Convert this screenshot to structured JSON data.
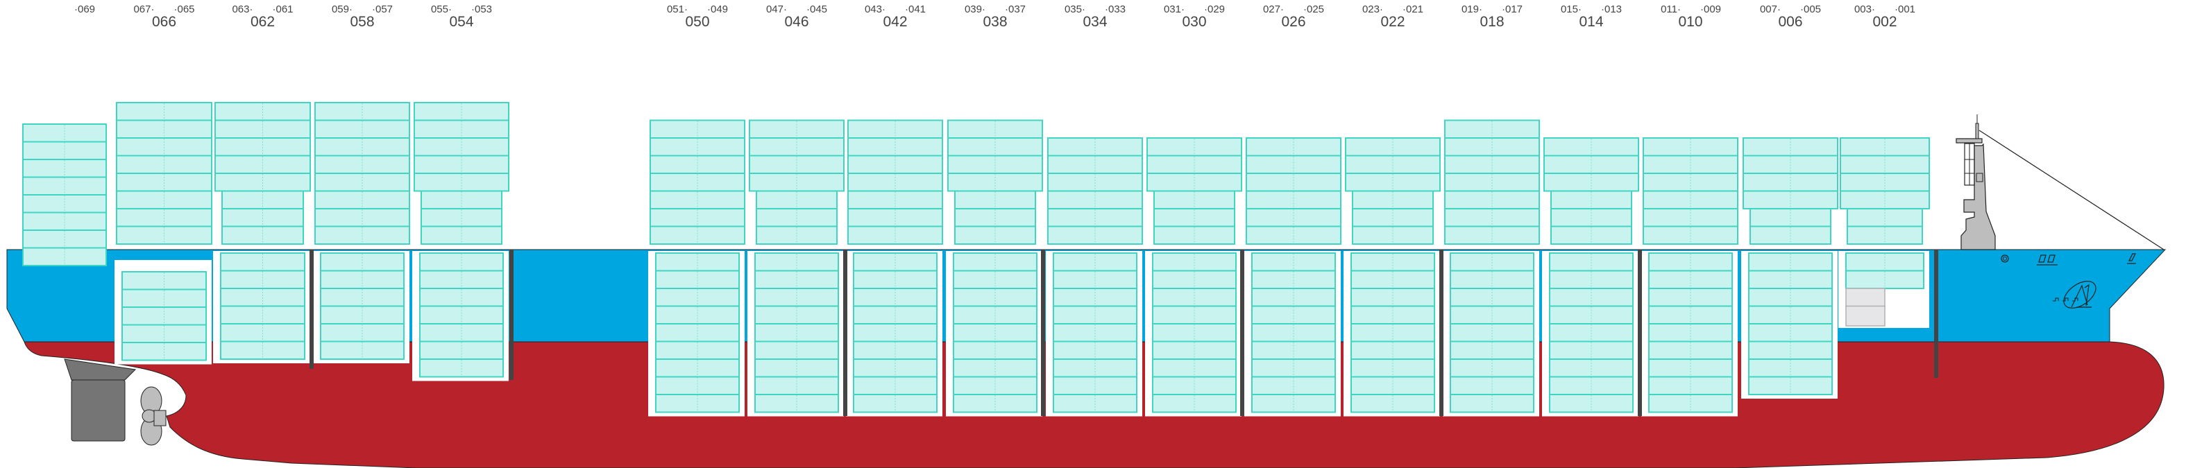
{
  "colors": {
    "hull_upper": "#00a6e0",
    "hull_lower": "#b8222a",
    "container_fill": "#c9f3ee",
    "container_stroke": "#42d4c3",
    "empty_slot_fill": "#e6e6e8",
    "bulkhead": "#444444",
    "superstructure": "#bdbdbd",
    "rudder": "#757575"
  },
  "bays": [
    {
      "label": "",
      "left": "",
      "right": "·069",
      "deck_tiers": 8,
      "deck_wide_tiers": 8,
      "hold_tiers": 0
    },
    {
      "label": "066",
      "left": "067·",
      "right": "·065",
      "deck_tiers": 8,
      "deck_wide_tiers": 8,
      "hold_tiers": 5
    },
    {
      "label": "062",
      "left": "063·",
      "right": "·061",
      "deck_tiers": 8,
      "deck_wide_tiers": 5,
      "hold_tiers": 6
    },
    {
      "label": "058",
      "left": "059·",
      "right": "·057",
      "deck_tiers": 8,
      "deck_wide_tiers": 8,
      "hold_tiers": 6
    },
    {
      "label": "054",
      "left": "055·",
      "right": "·053",
      "deck_tiers": 8,
      "deck_wide_tiers": 5,
      "hold_tiers": 7
    },
    {
      "label": "050",
      "left": "051·",
      "right": "·049",
      "deck_tiers": 7,
      "deck_wide_tiers": 7,
      "hold_tiers": 9
    },
    {
      "label": "046",
      "left": "047·",
      "right": "·045",
      "deck_tiers": 7,
      "deck_wide_tiers": 4,
      "hold_tiers": 9
    },
    {
      "label": "042",
      "left": "043·",
      "right": "·041",
      "deck_tiers": 7,
      "deck_wide_tiers": 7,
      "hold_tiers": 9
    },
    {
      "label": "038",
      "left": "039·",
      "right": "·037",
      "deck_tiers": 7,
      "deck_wide_tiers": 4,
      "hold_tiers": 9
    },
    {
      "label": "034",
      "left": "035·",
      "right": "·033",
      "deck_tiers": 6,
      "deck_wide_tiers": 6,
      "hold_tiers": 9
    },
    {
      "label": "030",
      "left": "031·",
      "right": "·029",
      "deck_tiers": 6,
      "deck_wide_tiers": 3,
      "hold_tiers": 9
    },
    {
      "label": "026",
      "left": "027·",
      "right": "·025",
      "deck_tiers": 6,
      "deck_wide_tiers": 6,
      "hold_tiers": 9
    },
    {
      "label": "022",
      "left": "023·",
      "right": "·021",
      "deck_tiers": 6,
      "deck_wide_tiers": 3,
      "hold_tiers": 9
    },
    {
      "label": "018",
      "left": "019·",
      "right": "·017",
      "deck_tiers": 7,
      "deck_wide_tiers": 7,
      "hold_tiers": 9
    },
    {
      "label": "014",
      "left": "015·",
      "right": "·013",
      "deck_tiers": 6,
      "deck_wide_tiers": 3,
      "hold_tiers": 9
    },
    {
      "label": "010",
      "left": "011·",
      "right": "·009",
      "deck_tiers": 6,
      "deck_wide_tiers": 6,
      "hold_tiers": 9
    },
    {
      "label": "006",
      "left": "007·",
      "right": "·005",
      "deck_tiers": 6,
      "deck_wide_tiers": 4,
      "hold_tiers": 8
    },
    {
      "label": "002",
      "left": "003·",
      "right": "·001",
      "deck_tiers": 6,
      "deck_wide_tiers": 4,
      "hold_tiers": 2,
      "hold_empty_tiers": 2
    }
  ]
}
